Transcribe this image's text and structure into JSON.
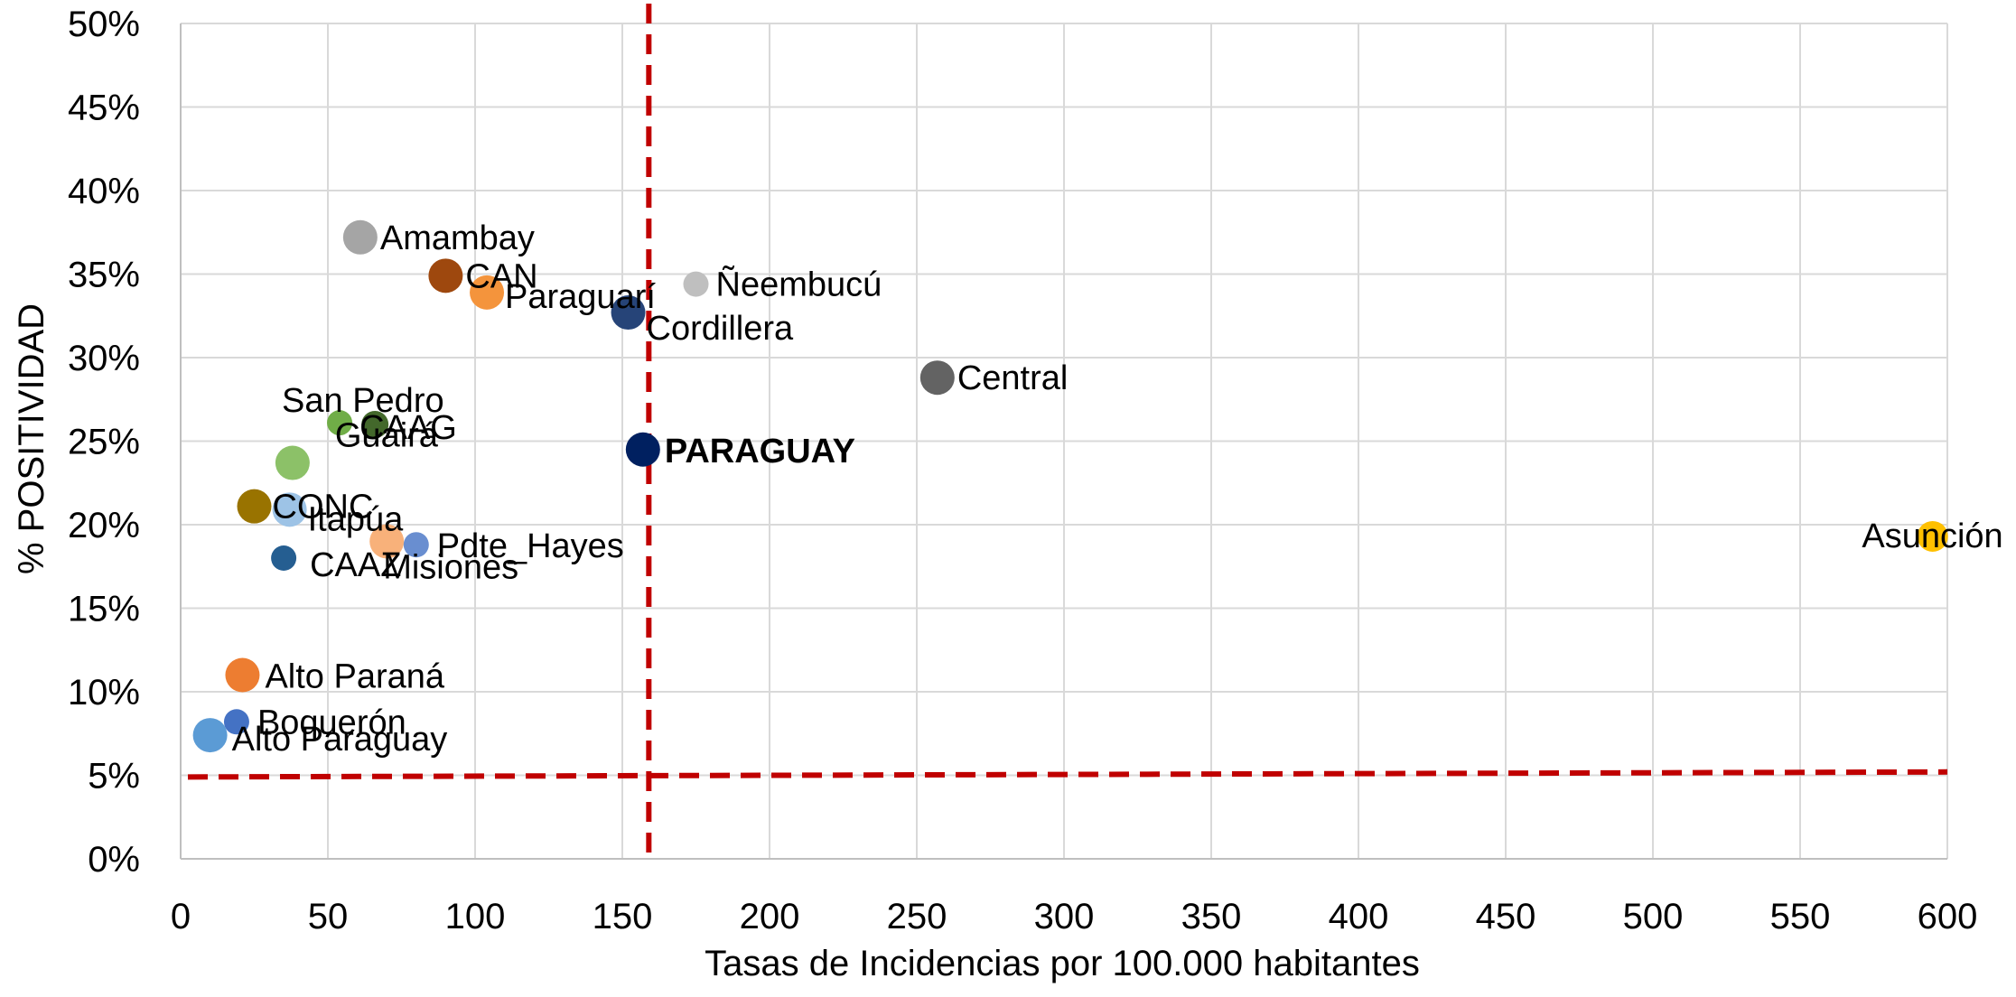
{
  "chart_data": {
    "type": "scatter",
    "title": "",
    "xlabel": "Tasas de Incidencias por 100.000 habitantes",
    "ylabel": "%  POSITIVIDAD",
    "xlim": [
      0,
      600
    ],
    "ylim": [
      0,
      0.5
    ],
    "x_ticks": [
      "0",
      "50",
      "100",
      "150",
      "200",
      "250",
      "300",
      "350",
      "400",
      "450",
      "500",
      "550",
      "600"
    ],
    "y_ticks": [
      "0%",
      "5%",
      "10%",
      "15%",
      "20%",
      "25%",
      "30%",
      "35%",
      "40%",
      "45%",
      "50%"
    ],
    "grid": true,
    "legend": "none",
    "reference_lines": [
      {
        "orientation": "vertical",
        "x": 159,
        "style": "dashed",
        "color": "#C00000"
      },
      {
        "orientation": "horizontal",
        "y_start": 0.049,
        "y_end": 0.052,
        "style": "dashed",
        "color": "#C00000"
      }
    ],
    "points": [
      {
        "label": "Amambay",
        "x": 61,
        "y": 0.372,
        "color": "#A5A5A5",
        "bold": false
      },
      {
        "label": "CAN",
        "x": 90,
        "y": 0.349,
        "color": "#9E480E",
        "bold": false
      },
      {
        "label": "Paraguarí",
        "x": 104,
        "y": 0.339,
        "color": "#F4943C",
        "bold": false
      },
      {
        "label": "Ñeembucú",
        "x": 175,
        "y": 0.344,
        "color": "#BFBFBF",
        "bold": false
      },
      {
        "label": "Cordillera",
        "x": 152,
        "y": 0.327,
        "color": "#264478",
        "bold": false
      },
      {
        "label": "Central",
        "x": 257,
        "y": 0.288,
        "color": "#636363",
        "bold": false
      },
      {
        "label": "San Pedro",
        "x": 54,
        "y": 0.261,
        "color": "#70AD47",
        "bold": false
      },
      {
        "label": "CAAG",
        "x": 66,
        "y": 0.26,
        "color": "#43682B",
        "bold": false
      },
      {
        "label": "Guairá",
        "x": 38,
        "y": 0.237,
        "color": "#8CC168",
        "bold": false
      },
      {
        "label": "PARAGUAY",
        "x": 157,
        "y": 0.245,
        "color": "#002060",
        "bold": true
      },
      {
        "label": "CONC",
        "x": 25,
        "y": 0.211,
        "color": "#997300",
        "bold": false
      },
      {
        "label": "Itapúa",
        "x": 37,
        "y": 0.209,
        "color": "#9DC3E6",
        "bold": false
      },
      {
        "label": "Misiones",
        "x": 70,
        "y": 0.19,
        "color": "#F8B17A",
        "bold": false
      },
      {
        "label": "Pdte_Hayes",
        "x": 80,
        "y": 0.188,
        "color": "#698ED0",
        "bold": false
      },
      {
        "label": "CAAZ",
        "x": 35,
        "y": 0.18,
        "color": "#255E91",
        "bold": false
      },
      {
        "label": "Asunción",
        "x": 595,
        "y": 0.193,
        "color": "#FFC000",
        "bold": false
      },
      {
        "label": "Alto Paraná",
        "x": 21,
        "y": 0.11,
        "color": "#ED7D31",
        "bold": false
      },
      {
        "label": "Boquerón",
        "x": 19,
        "y": 0.082,
        "color": "#4472C4",
        "bold": false
      },
      {
        "label": "Alto Paraguay",
        "x": 10,
        "y": 0.074,
        "color": "#5B9BD5",
        "bold": false
      }
    ]
  }
}
